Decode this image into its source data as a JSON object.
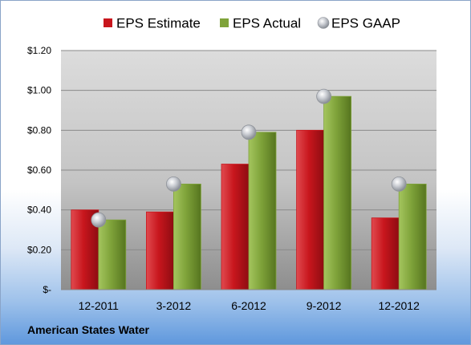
{
  "company": "American States Water",
  "colors": {
    "estimate": "#c8161d",
    "actual": "#7fa33a",
    "gaap": "#b9bcc2"
  },
  "chart_data": {
    "type": "bar",
    "categories": [
      "12-2011",
      "3-2012",
      "6-2012",
      "9-2012",
      "12-2012"
    ],
    "series": [
      {
        "name": "EPS Estimate",
        "kind": "bar",
        "values": [
          0.4,
          0.39,
          0.63,
          0.8,
          0.36
        ]
      },
      {
        "name": "EPS Actual",
        "kind": "bar",
        "values": [
          0.35,
          0.53,
          0.79,
          0.97,
          0.53
        ]
      },
      {
        "name": "EPS GAAP",
        "kind": "marker",
        "values": [
          0.35,
          0.53,
          0.79,
          0.97,
          0.53
        ]
      }
    ],
    "yticks": [
      "$-",
      "$0.20",
      "$0.40",
      "$0.60",
      "$0.80",
      "$1.00",
      "$1.20"
    ],
    "ylim": [
      0,
      1.2
    ],
    "title": "",
    "xlabel": "",
    "ylabel": "",
    "grid": true,
    "legend": "top"
  }
}
